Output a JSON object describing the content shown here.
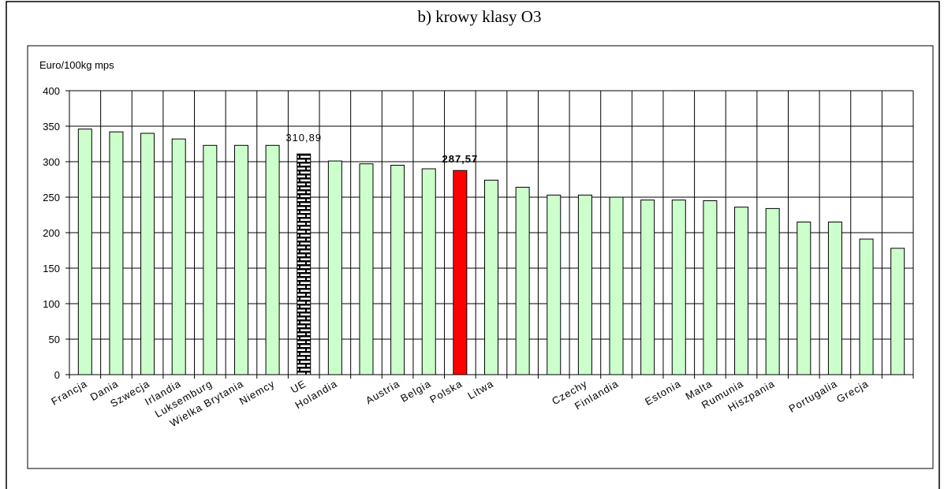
{
  "chart_data": {
    "type": "bar",
    "title": "b) krowy klasy O3",
    "y_label": "Euro/100kg mps",
    "categories": [
      "Francja",
      "Dania",
      "Szwecja",
      "Irlandia",
      "Luksemburg",
      "Wielka Brytania",
      "Niemcy",
      "UE",
      "Holandia",
      null,
      "Austria",
      "Belgia",
      "Polska",
      "Litwa",
      null,
      null,
      "Czechy",
      "Finlandia",
      null,
      "Estonia",
      "Malta",
      "Rumunia",
      "Hiszpania",
      null,
      "Portugalia",
      "Grecja",
      null
    ],
    "values": [
      346,
      342,
      340,
      332,
      323,
      323,
      323,
      310.89,
      301,
      297,
      295,
      290,
      287.57,
      274,
      264,
      253,
      253,
      250,
      246,
      246,
      245,
      236,
      234,
      215,
      215,
      191,
      178
    ],
    "value_labels": [
      null,
      null,
      null,
      null,
      null,
      null,
      null,
      "310,89",
      null,
      null,
      null,
      null,
      "287,57",
      null,
      null,
      null,
      null,
      null,
      null,
      null,
      null,
      null,
      null,
      null,
      null,
      null,
      null
    ],
    "colors": [
      "#ccffcc",
      "#ccffcc",
      "#ccffcc",
      "#ccffcc",
      "#ccffcc",
      "#ccffcc",
      "#ccffcc",
      "brick",
      "#ccffcc",
      "#ccffcc",
      "#ccffcc",
      "#ccffcc",
      "#ff0000",
      "#ccffcc",
      "#ccffcc",
      "#ccffcc",
      "#ccffcc",
      "#ccffcc",
      "#ccffcc",
      "#ccffcc",
      "#ccffcc",
      "#ccffcc",
      "#ccffcc",
      "#ccffcc",
      "#ccffcc",
      "#ccffcc",
      "#ccffcc"
    ],
    "ylim": [
      0,
      400
    ],
    "yticks": [
      0,
      50,
      100,
      150,
      200,
      250,
      300,
      350,
      400
    ],
    "grid": true
  }
}
